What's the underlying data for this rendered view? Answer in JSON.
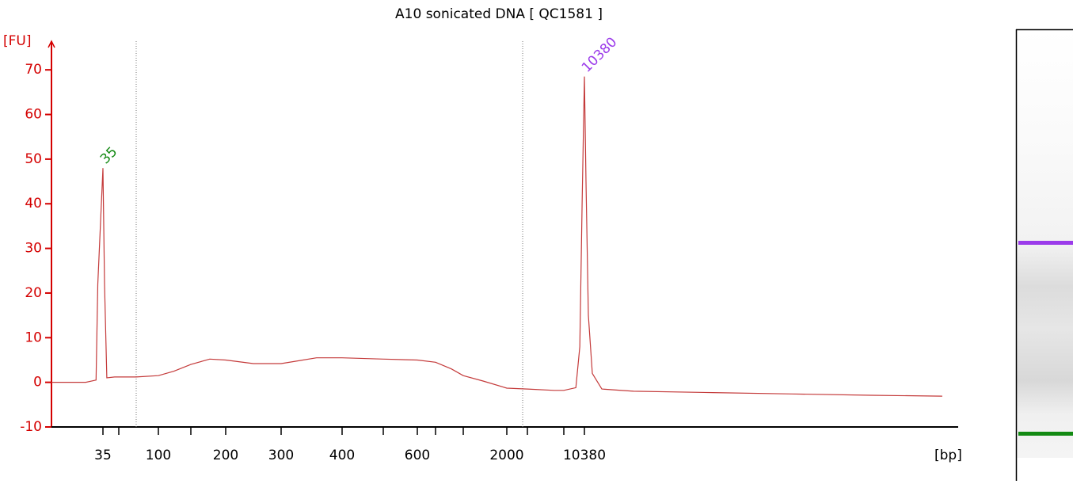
{
  "chart_data": {
    "type": "line",
    "title": "A10 sonicated DNA  [ QC1581 ]",
    "y_label": "[FU]",
    "x_label": "[bp]",
    "log_like_ladder_axis": true,
    "xlim": [
      20,
      40000
    ],
    "xticks": [
      35,
      100,
      200,
      300,
      400,
      600,
      2000,
      10380
    ],
    "minor_xticks": [
      50,
      150,
      500,
      700,
      1000,
      3000,
      7000
    ],
    "ylim": [
      -10,
      75
    ],
    "yticks": [
      -10,
      0,
      10,
      20,
      30,
      40,
      50,
      60,
      70
    ],
    "axis_color": "#d40000",
    "region_lines": [
      72,
      2770
    ],
    "series": [
      {
        "name": "A10",
        "color": "#c43a3a",
        "x": [
          20,
          30,
          33,
          33.5,
          35,
          36.5,
          38.7,
          46,
          72,
          100,
          124,
          150,
          177,
          200,
          250,
          300,
          358,
          400,
          500,
          600,
          700,
          871,
          1000,
          1455,
          2000,
          3000,
          5957,
          7000,
          8980,
          9630,
          10000,
          10380,
          10510,
          10704,
          11028,
          11806,
          14398,
          20878,
          27358,
          33838,
          39670
        ],
        "values": [
          0,
          0,
          0.5,
          22,
          48,
          22,
          1,
          1.2,
          1.2,
          1.5,
          2.5,
          4,
          5.2,
          5,
          4.2,
          4.2,
          5.5,
          5.5,
          5.2,
          5,
          4.5,
          3,
          1.5,
          0.3,
          -1.3,
          -1.5,
          -1.8,
          -1.8,
          -1.2,
          8,
          40,
          68.5,
          45,
          15,
          2,
          -1.5,
          -2,
          -2.3,
          -2.6,
          -2.9,
          -3.1
        ]
      }
    ],
    "peak_labels": [
      {
        "text": "35",
        "x": 35,
        "y": 48,
        "color": "#138a13"
      },
      {
        "text": "10380",
        "x": 10380,
        "y": 68.5,
        "color": "#9b3bea"
      }
    ]
  }
}
